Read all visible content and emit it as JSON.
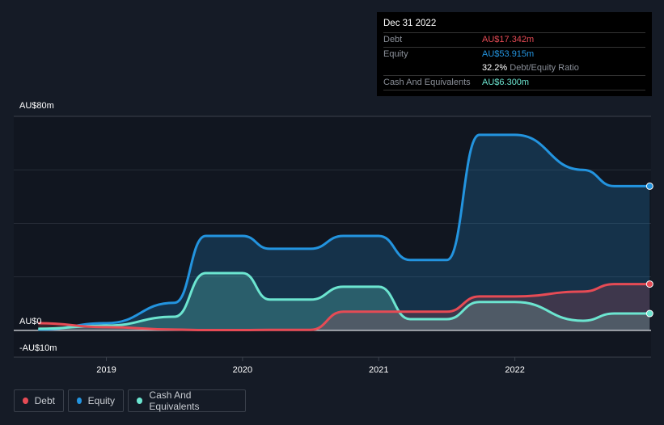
{
  "tooltip": {
    "date": "Dec 31 2022",
    "debt_label": "Debt",
    "debt_value": "AU$17.342m",
    "equity_label": "Equity",
    "equity_value": "AU$53.915m",
    "ratio_value": "32.2%",
    "ratio_label": "Debt/Equity Ratio",
    "cash_label": "Cash And Equivalents",
    "cash_value": "AU$6.300m"
  },
  "chart_data": {
    "type": "area",
    "ylim": [
      -10,
      80
    ],
    "y_tick_labels": {
      "top": "AU$80m",
      "zero": "AU$0",
      "bottom": "-AU$10m"
    },
    "x_ticks": [
      2019,
      2020,
      2021,
      2022
    ],
    "x_tick_labels": [
      "2019",
      "2020",
      "2021",
      "2022"
    ],
    "xlim": [
      2018.32,
      2023.0
    ],
    "x": [
      2018.5,
      2019.0,
      2019.5,
      2019.73,
      2020.0,
      2020.2,
      2020.5,
      2020.74,
      2021.0,
      2021.23,
      2021.5,
      2021.74,
      2022.0,
      2022.5,
      2022.73,
      2022.99
    ],
    "series": [
      {
        "name": "Equity",
        "color": "#2394df",
        "values": [
          0.3,
          2.7,
          10.3,
          35.3,
          35.3,
          30.5,
          30.5,
          35.3,
          35.3,
          26.3,
          26.3,
          73.1,
          73.1,
          60,
          53.9,
          53.9
        ]
      },
      {
        "name": "Cash And Equivalents",
        "color": "#6ce5d0",
        "values": [
          0.6,
          1.8,
          5.1,
          21.4,
          21.4,
          11.5,
          11.5,
          16.3,
          16.3,
          4.2,
          4.2,
          10.6,
          10.6,
          3.6,
          6.3,
          6.3
        ]
      },
      {
        "name": "Debt",
        "color": "#e64b55",
        "values": [
          2.7,
          1.2,
          0.3,
          0.1,
          0.1,
          0.2,
          0.2,
          7.0,
          7.0,
          7.0,
          7.0,
          12.7,
          12.7,
          14.5,
          17.3,
          17.3
        ]
      }
    ],
    "legend": [
      "Debt",
      "Equity",
      "Cash And Equivalents"
    ],
    "legend_placement": "bottom-left"
  }
}
